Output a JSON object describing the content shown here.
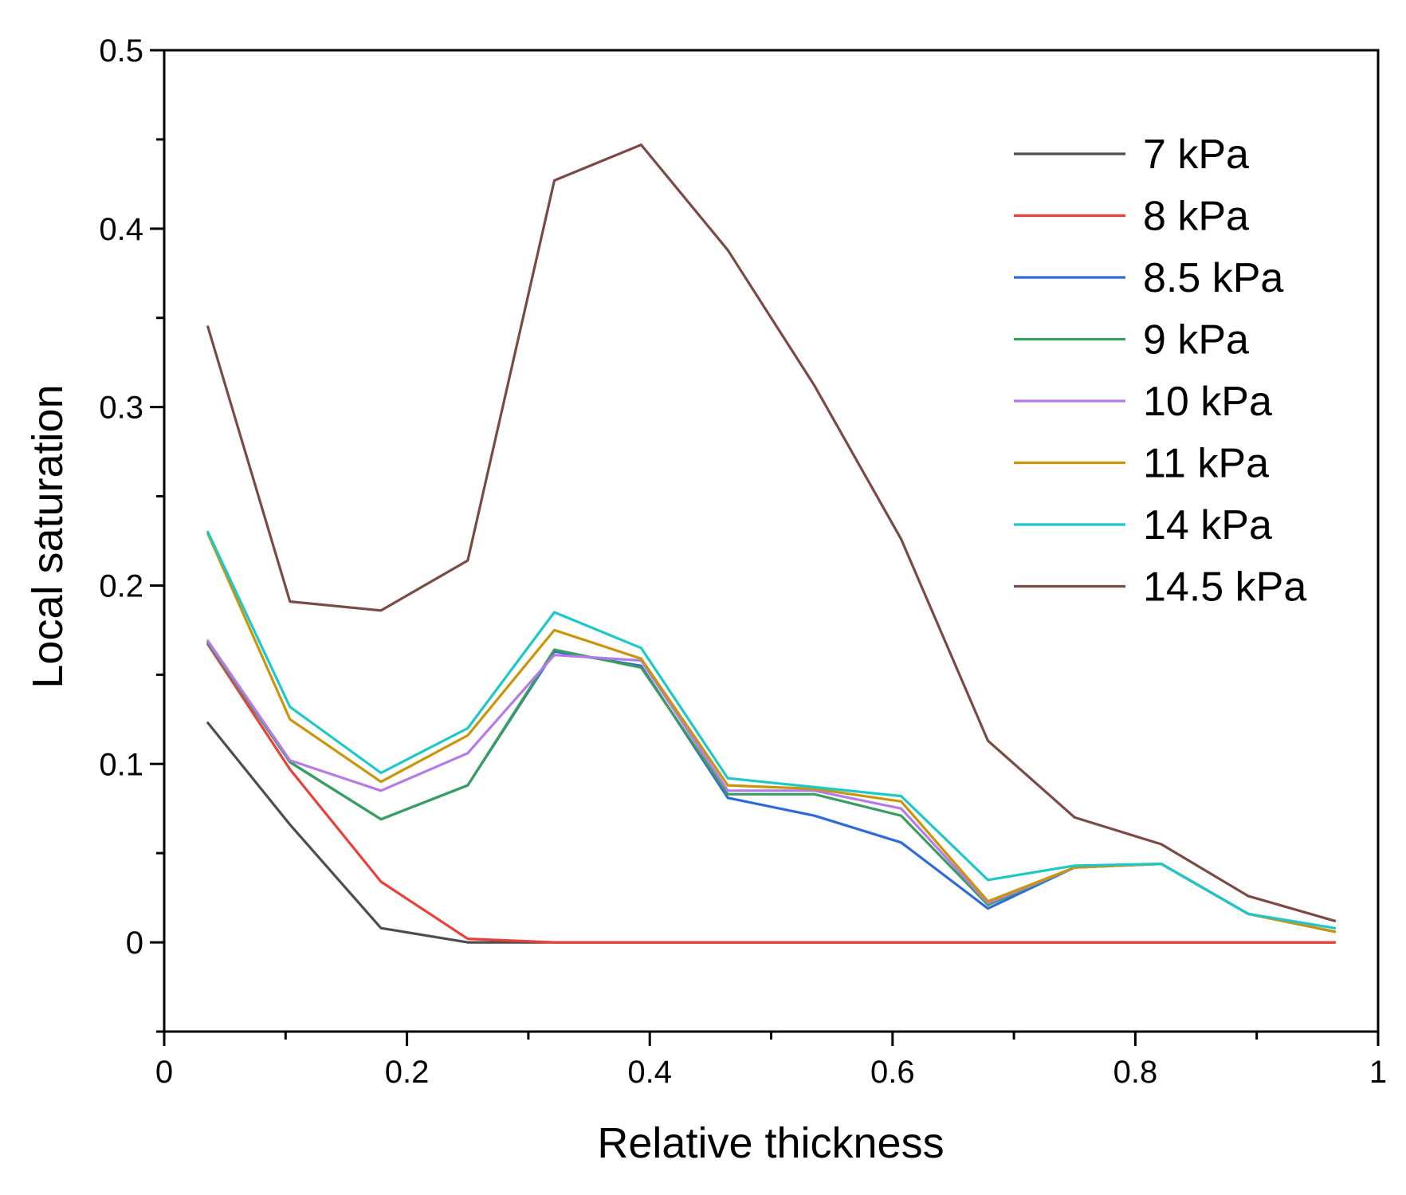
{
  "chart_data": {
    "type": "line",
    "title": "",
    "xlabel": "Relative thickness",
    "ylabel": "Local saturation",
    "xlim": [
      0,
      1
    ],
    "ylim": [
      -0.05,
      0.5
    ],
    "grid": false,
    "legend_position": "top-right",
    "x_ticks": [
      0,
      0.2,
      0.4,
      0.6,
      0.8,
      1
    ],
    "x_tick_labels": [
      "0",
      "0.2",
      "0.4",
      "0.6",
      "0.8",
      "1"
    ],
    "x_minor_ticks": [
      0.1,
      0.3,
      0.5,
      0.7,
      0.9
    ],
    "y_ticks": [
      0,
      0.1,
      0.2,
      0.3,
      0.4,
      0.5
    ],
    "y_tick_labels": [
      "0",
      "0.1",
      "0.2",
      "0.3",
      "0.4",
      "0.5"
    ],
    "y_minor_ticks": [
      -0.05,
      0.05,
      0.15,
      0.25,
      0.35,
      0.45
    ],
    "x": [
      0.036,
      0.1036,
      0.1786,
      0.25,
      0.3214,
      0.3929,
      0.4643,
      0.5357,
      0.6071,
      0.6786,
      0.75,
      0.8214,
      0.8929,
      0.9643
    ],
    "series": [
      {
        "name": "7 kPa",
        "color": "#4d4d4d",
        "values": [
          0.123,
          0.066,
          0.008,
          0.0,
          0.0,
          0.0,
          0.0,
          0.0,
          0.0,
          0.0,
          0.0,
          0.0,
          0.0,
          0.0
        ]
      },
      {
        "name": "8 kPa",
        "color": "#e8413c",
        "values": [
          0.167,
          0.097,
          0.034,
          0.002,
          0.0,
          0.0,
          0.0,
          0.0,
          0.0,
          0.0,
          0.0,
          0.0,
          0.0,
          0.0
        ]
      },
      {
        "name": "8.5 kPa",
        "color": "#2e6bd6",
        "values": [
          0.168,
          0.101,
          0.069,
          0.088,
          0.163,
          0.155,
          0.081,
          0.071,
          0.056,
          0.019,
          0.042,
          0.044,
          0.016,
          0.006
        ]
      },
      {
        "name": "9 kPa",
        "color": "#3a9e5e",
        "values": [
          0.168,
          0.101,
          0.069,
          0.088,
          0.164,
          0.154,
          0.083,
          0.083,
          0.071,
          0.021,
          0.042,
          0.044,
          0.016,
          0.006
        ]
      },
      {
        "name": "10 kPa",
        "color": "#b57be8",
        "values": [
          0.169,
          0.102,
          0.085,
          0.106,
          0.161,
          0.158,
          0.085,
          0.085,
          0.075,
          0.022,
          0.042,
          0.044,
          0.016,
          0.006
        ]
      },
      {
        "name": "11 kPa",
        "color": "#c9950c",
        "values": [
          0.229,
          0.125,
          0.09,
          0.116,
          0.175,
          0.159,
          0.088,
          0.086,
          0.079,
          0.023,
          0.042,
          0.044,
          0.016,
          0.006
        ]
      },
      {
        "name": "14 kPa",
        "color": "#1ec8c8",
        "values": [
          0.23,
          0.132,
          0.095,
          0.12,
          0.185,
          0.165,
          0.092,
          0.087,
          0.082,
          0.035,
          0.043,
          0.044,
          0.016,
          0.008
        ]
      },
      {
        "name": "14.5 kPa",
        "color": "#7b4a44",
        "values": [
          0.345,
          0.191,
          0.186,
          0.214,
          0.427,
          0.447,
          0.388,
          0.312,
          0.226,
          0.113,
          0.07,
          0.055,
          0.026,
          0.012
        ]
      }
    ]
  }
}
